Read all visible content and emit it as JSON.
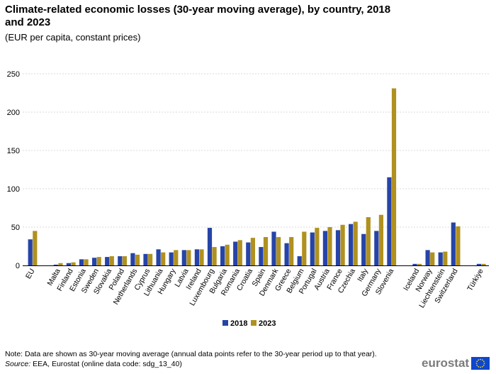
{
  "title": "Climate-related economic losses (30-year moving average), by country, 2018 and 2023",
  "subtitle": "(EUR per capita, constant prices)",
  "note": "Note: Data are shown as 30-year moving average (annual data points refer to the 30-year period up to that year).",
  "source_label": "Source:",
  "source_text": " EEA, Eurostat (online data code: sdg_13_40)",
  "logo_text": "eurostat",
  "colors": {
    "series_2018": "#2644a7",
    "series_2023": "#b09120",
    "grid": "#d9d9d9",
    "axis": "#000000"
  },
  "chart_data": {
    "type": "bar",
    "categories": [
      "EU",
      "Malta",
      "Finland",
      "Estonia",
      "Sweden",
      "Slovakia",
      "Poland",
      "Netherlands",
      "Cyprus",
      "Lithuania",
      "Hungary",
      "Latvia",
      "Ireland",
      "Luxembourg",
      "Bulgaria",
      "Romania",
      "Croatia",
      "Spain",
      "Denmark",
      "Greece",
      "Belgium",
      "Portugal",
      "Austria",
      "France",
      "Czechia",
      "Italy",
      "Germany",
      "Slovenia",
      "Iceland",
      "Norway",
      "Liechtenstein",
      "Switzerland",
      "Türkiye"
    ],
    "groups": [
      [
        0
      ],
      [
        1,
        27
      ],
      [
        28,
        31
      ],
      [
        32
      ]
    ],
    "series": [
      {
        "name": "2018",
        "values": [
          34,
          1,
          3,
          8,
          10,
          11,
          12,
          16,
          15,
          21,
          17,
          20,
          21,
          49,
          25,
          31,
          30,
          24,
          44,
          29,
          12,
          43,
          45,
          46,
          54,
          41,
          45,
          115,
          2,
          20,
          17,
          56,
          2
        ]
      },
      {
        "name": "2023",
        "values": [
          45,
          3,
          4,
          8,
          11,
          12,
          12,
          14,
          15,
          17,
          20,
          20,
          21,
          24,
          27,
          33,
          36,
          37,
          37,
          37,
          44,
          49,
          50,
          53,
          57,
          63,
          66,
          231,
          2,
          17,
          18,
          51,
          2
        ]
      }
    ],
    "yticks": [
      0,
      50,
      100,
      150,
      200,
      250
    ],
    "ylim": [
      0,
      250
    ],
    "grid": true,
    "legend_position": "bottom"
  }
}
